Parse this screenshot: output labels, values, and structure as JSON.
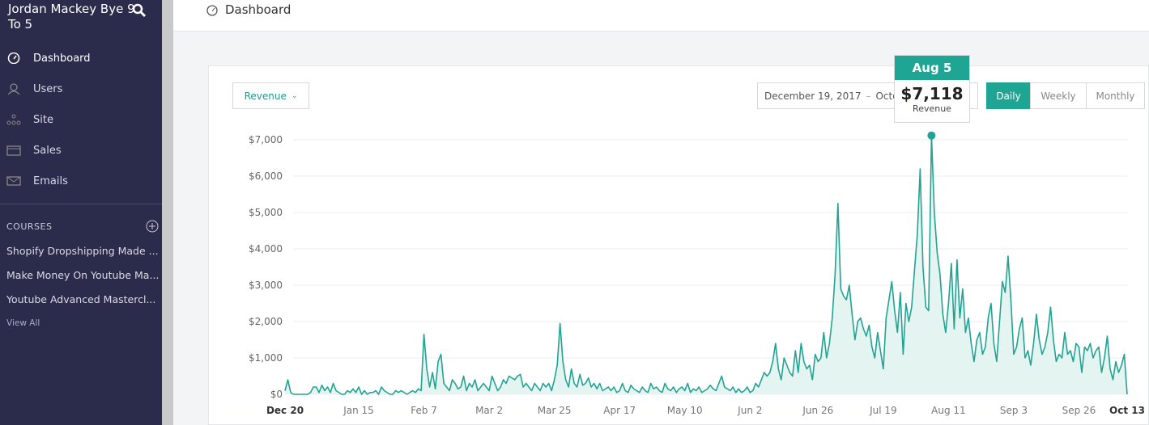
{
  "sidebar": {
    "brand": "Jordan Mackey Bye 9 To 5",
    "nav": [
      "Dashboard",
      "Users",
      "Site",
      "Sales",
      "Emails"
    ],
    "courses_heading": "COURSES",
    "courses": [
      "Shopify Dropshipping Made ...",
      "Make Money On Youtube Ma...",
      "Youtube Advanced Mastercl..."
    ],
    "view_all": "View All"
  },
  "header": {
    "title": "Dashboard"
  },
  "controls": {
    "metric": "Revenue",
    "date_start": "December 19, 2017",
    "date_sep": "–",
    "date_end": "October",
    "periods": [
      "Daily",
      "Weekly",
      "Monthly"
    ]
  },
  "tooltip": {
    "date": "Aug 5",
    "value_label": "$7,118",
    "series": "Revenue"
  },
  "chart_data": {
    "type": "line",
    "color": "#22a393",
    "fill": "#e3f4f1",
    "grid": true,
    "ylim": [
      0,
      7200
    ],
    "yticks": [
      {
        "value": 0,
        "label": "$0"
      },
      {
        "value": 1000,
        "label": "$1,000"
      },
      {
        "value": 2000,
        "label": "$2,000"
      },
      {
        "value": 3000,
        "label": "$3,000"
      },
      {
        "value": 4000,
        "label": "$4,000"
      },
      {
        "value": 5000,
        "label": "$5,000"
      },
      {
        "value": 6000,
        "label": "$6,000"
      },
      {
        "value": 7000,
        "label": "$7,000"
      }
    ],
    "categories": [
      "Dec 20",
      null,
      null,
      null,
      null,
      null,
      null,
      null,
      null,
      null,
      null,
      null,
      null,
      null,
      null,
      null,
      null,
      null,
      null,
      null,
      null,
      null,
      null,
      null,
      null,
      null,
      "Jan 15",
      null,
      null,
      null,
      null,
      null,
      null,
      null,
      null,
      null,
      null,
      null,
      null,
      null,
      null,
      null,
      null,
      null,
      null,
      null,
      null,
      null,
      null,
      "Feb 7",
      null,
      null,
      null,
      null,
      null,
      null,
      null,
      null,
      null,
      null,
      null,
      null,
      null,
      null,
      null,
      null,
      null,
      null,
      null,
      null,
      null,
      null,
      "Mar 2",
      null,
      null,
      null,
      null,
      null,
      null,
      null,
      null,
      null,
      null,
      null,
      null,
      null,
      null,
      null,
      null,
      null,
      null,
      null,
      null,
      null,
      null,
      "Mar 25",
      null,
      null,
      null,
      null,
      null,
      null,
      null,
      null,
      null,
      null,
      null,
      null,
      null,
      null,
      null,
      null,
      null,
      null,
      null,
      null,
      null,
      null,
      "Apr 17",
      null,
      null,
      null,
      null,
      null,
      null,
      null,
      null,
      null,
      null,
      null,
      null,
      null,
      null,
      null,
      null,
      null,
      null,
      null,
      null,
      null,
      null,
      "May 10",
      null,
      null,
      null,
      null,
      null,
      null,
      null,
      null,
      null,
      null,
      null,
      null,
      null,
      null,
      null,
      null,
      null,
      null,
      null,
      null,
      null,
      null,
      "Jun 2",
      null,
      null,
      null,
      null,
      null,
      null,
      null,
      null,
      null,
      null,
      null,
      null,
      null,
      null,
      null,
      null,
      null,
      null,
      null,
      null,
      null,
      null,
      null,
      "Jun 26",
      null,
      null,
      null,
      null,
      null,
      null,
      null,
      null,
      null,
      null,
      null,
      null,
      null,
      null,
      null,
      null,
      null,
      null,
      null,
      null,
      null,
      null,
      "Jul 19",
      null,
      null,
      null,
      null,
      null,
      null,
      null,
      null,
      null,
      null,
      null,
      null,
      null,
      null,
      null,
      null,
      null,
      null,
      null,
      null,
      null,
      null,
      "Aug 11",
      null,
      null,
      null,
      null,
      null,
      null,
      null,
      null,
      null,
      null,
      null,
      null,
      null,
      null,
      null,
      null,
      null,
      null,
      null,
      null,
      null,
      null,
      "Sep 3",
      null,
      null,
      null,
      null,
      null,
      null,
      null,
      null,
      null,
      null,
      null,
      null,
      null,
      null,
      null,
      null,
      null,
      null,
      null,
      null,
      null,
      null,
      "Sep 26",
      null,
      null,
      null,
      null,
      null,
      null,
      null,
      null,
      null,
      null,
      null,
      null,
      null,
      null,
      null,
      null,
      "Oct 13"
    ],
    "values": [
      100,
      400,
      50,
      0,
      0,
      0,
      0,
      0,
      0,
      50,
      200,
      200,
      50,
      250,
      100,
      200,
      50,
      300,
      100,
      50,
      0,
      0,
      100,
      50,
      150,
      50,
      200,
      0,
      100,
      0,
      50,
      50,
      100,
      0,
      200,
      100,
      50,
      0,
      0,
      100,
      50,
      100,
      50,
      0,
      50,
      100,
      50,
      150,
      100,
      1650,
      700,
      200,
      600,
      150,
      900,
      1100,
      300,
      200,
      100,
      400,
      300,
      150,
      200,
      500,
      100,
      300,
      200,
      400,
      100,
      200,
      300,
      200,
      100,
      500,
      300,
      100,
      200,
      400,
      300,
      500,
      450,
      400,
      500,
      550,
      200,
      300,
      200,
      100,
      300,
      200,
      100,
      300,
      200,
      300,
      100,
      400,
      800,
      1950,
      900,
      400,
      200,
      700,
      300,
      200,
      550,
      250,
      300,
      450,
      200,
      300,
      150,
      300,
      100,
      150,
      200,
      100,
      200,
      50,
      100,
      300,
      100,
      50,
      250,
      150,
      100,
      50,
      200,
      100,
      50,
      300,
      150,
      200,
      100,
      50,
      300,
      150,
      100,
      200,
      50,
      150,
      200,
      100,
      300,
      50,
      150,
      100,
      200,
      50,
      100,
      150,
      250,
      150,
      100,
      300,
      500,
      200,
      150,
      100,
      200,
      50,
      150,
      50,
      100,
      200,
      50,
      100,
      300,
      200,
      400,
      600,
      500,
      600,
      900,
      1400,
      700,
      400,
      1000,
      800,
      600,
      500,
      1200,
      600,
      1400,
      900,
      700,
      800,
      400,
      1100,
      900,
      1000,
      1700,
      1000,
      1400,
      2100,
      3300,
      5250,
      2900,
      2700,
      2600,
      3000,
      2200,
      1500,
      2000,
      2100,
      1800,
      1600,
      1900,
      1300,
      1000,
      1700,
      1200,
      700,
      2100,
      2600,
      3100,
      2300,
      1700,
      2800,
      1100,
      2500,
      2000,
      2400,
      3400,
      4400,
      6200,
      3500,
      2400,
      2300,
      7118,
      5000,
      3900,
      3300,
      2200,
      1700,
      2500,
      3600,
      1800,
      3700,
      2100,
      2900,
      1700,
      2100,
      1400,
      900,
      1500,
      1700,
      1100,
      1300,
      2100,
      2500,
      1400,
      900,
      2000,
      3100,
      2800,
      3800,
      2600,
      1100,
      1300,
      1800,
      2100,
      1000,
      1200,
      800,
      1400,
      2200,
      1500,
      1100,
      1300,
      1700,
      2400,
      1500,
      900,
      1100,
      1000,
      1700,
      1100,
      1200,
      900,
      1400,
      1300,
      600,
      1300,
      1200,
      1400,
      1000,
      1200,
      1300,
      600,
      1000,
      1600,
      700,
      400,
      900,
      600,
      800,
      1100,
      0
    ]
  }
}
